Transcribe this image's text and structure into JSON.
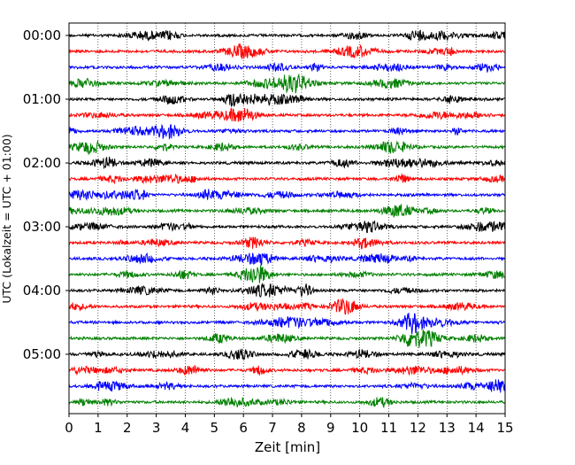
{
  "chart_data": {
    "type": "line",
    "title": "",
    "xlabel": "Zeit  [min]",
    "ylabel": "UTC (Lokalzeit = UTC + 01:00)",
    "xlim": [
      0,
      15
    ],
    "x_ticks": [
      "0",
      "1",
      "2",
      "3",
      "4",
      "5",
      "6",
      "7",
      "8",
      "9",
      "10",
      "11",
      "12",
      "13",
      "14",
      "15"
    ],
    "y_tick_labels": [
      "00:00",
      "01:00",
      "02:00",
      "03:00",
      "04:00",
      "05:00"
    ],
    "y_tick_hours": [
      0,
      1,
      2,
      3,
      4,
      5
    ],
    "trace_interval_minutes": 15,
    "trace_count": 24,
    "trace_colors": [
      "#000000",
      "#ff0000",
      "#0000ff",
      "#008000"
    ],
    "grid": "vertical-dotted",
    "legend": "none"
  }
}
